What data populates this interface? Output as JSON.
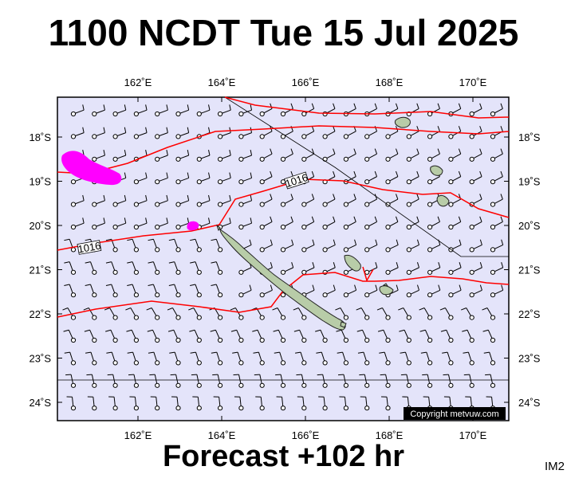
{
  "title": "1100 NCDT Tue 15 Jul 2025",
  "footer": "Forecast +102 hr",
  "image_tag": "IM2",
  "copyright": "Copyright metvuw.com",
  "lon_ticks": [
    {
      "value": 162,
      "label": "162˚E"
    },
    {
      "value": 164,
      "label": "164˚E"
    },
    {
      "value": 166,
      "label": "166˚E"
    },
    {
      "value": 168,
      "label": "168˚E"
    },
    {
      "value": 170,
      "label": "170˚E"
    }
  ],
  "lat_ticks": [
    {
      "value": -18,
      "label": "18˚S"
    },
    {
      "value": -19,
      "label": "19˚S"
    },
    {
      "value": -20,
      "label": "20˚S"
    },
    {
      "value": -21,
      "label": "21˚S"
    },
    {
      "value": -22,
      "label": "22˚S"
    },
    {
      "value": -23,
      "label": "23˚S"
    },
    {
      "value": -24,
      "label": "24˚S"
    }
  ],
  "isobar_labels": [
    "1016",
    "1016"
  ],
  "colors": {
    "ocean": "#e4e4fa",
    "isobar": "#ff0000",
    "land": "#b8cca8",
    "rain": "#ff00ff",
    "frame": "#000000"
  }
}
